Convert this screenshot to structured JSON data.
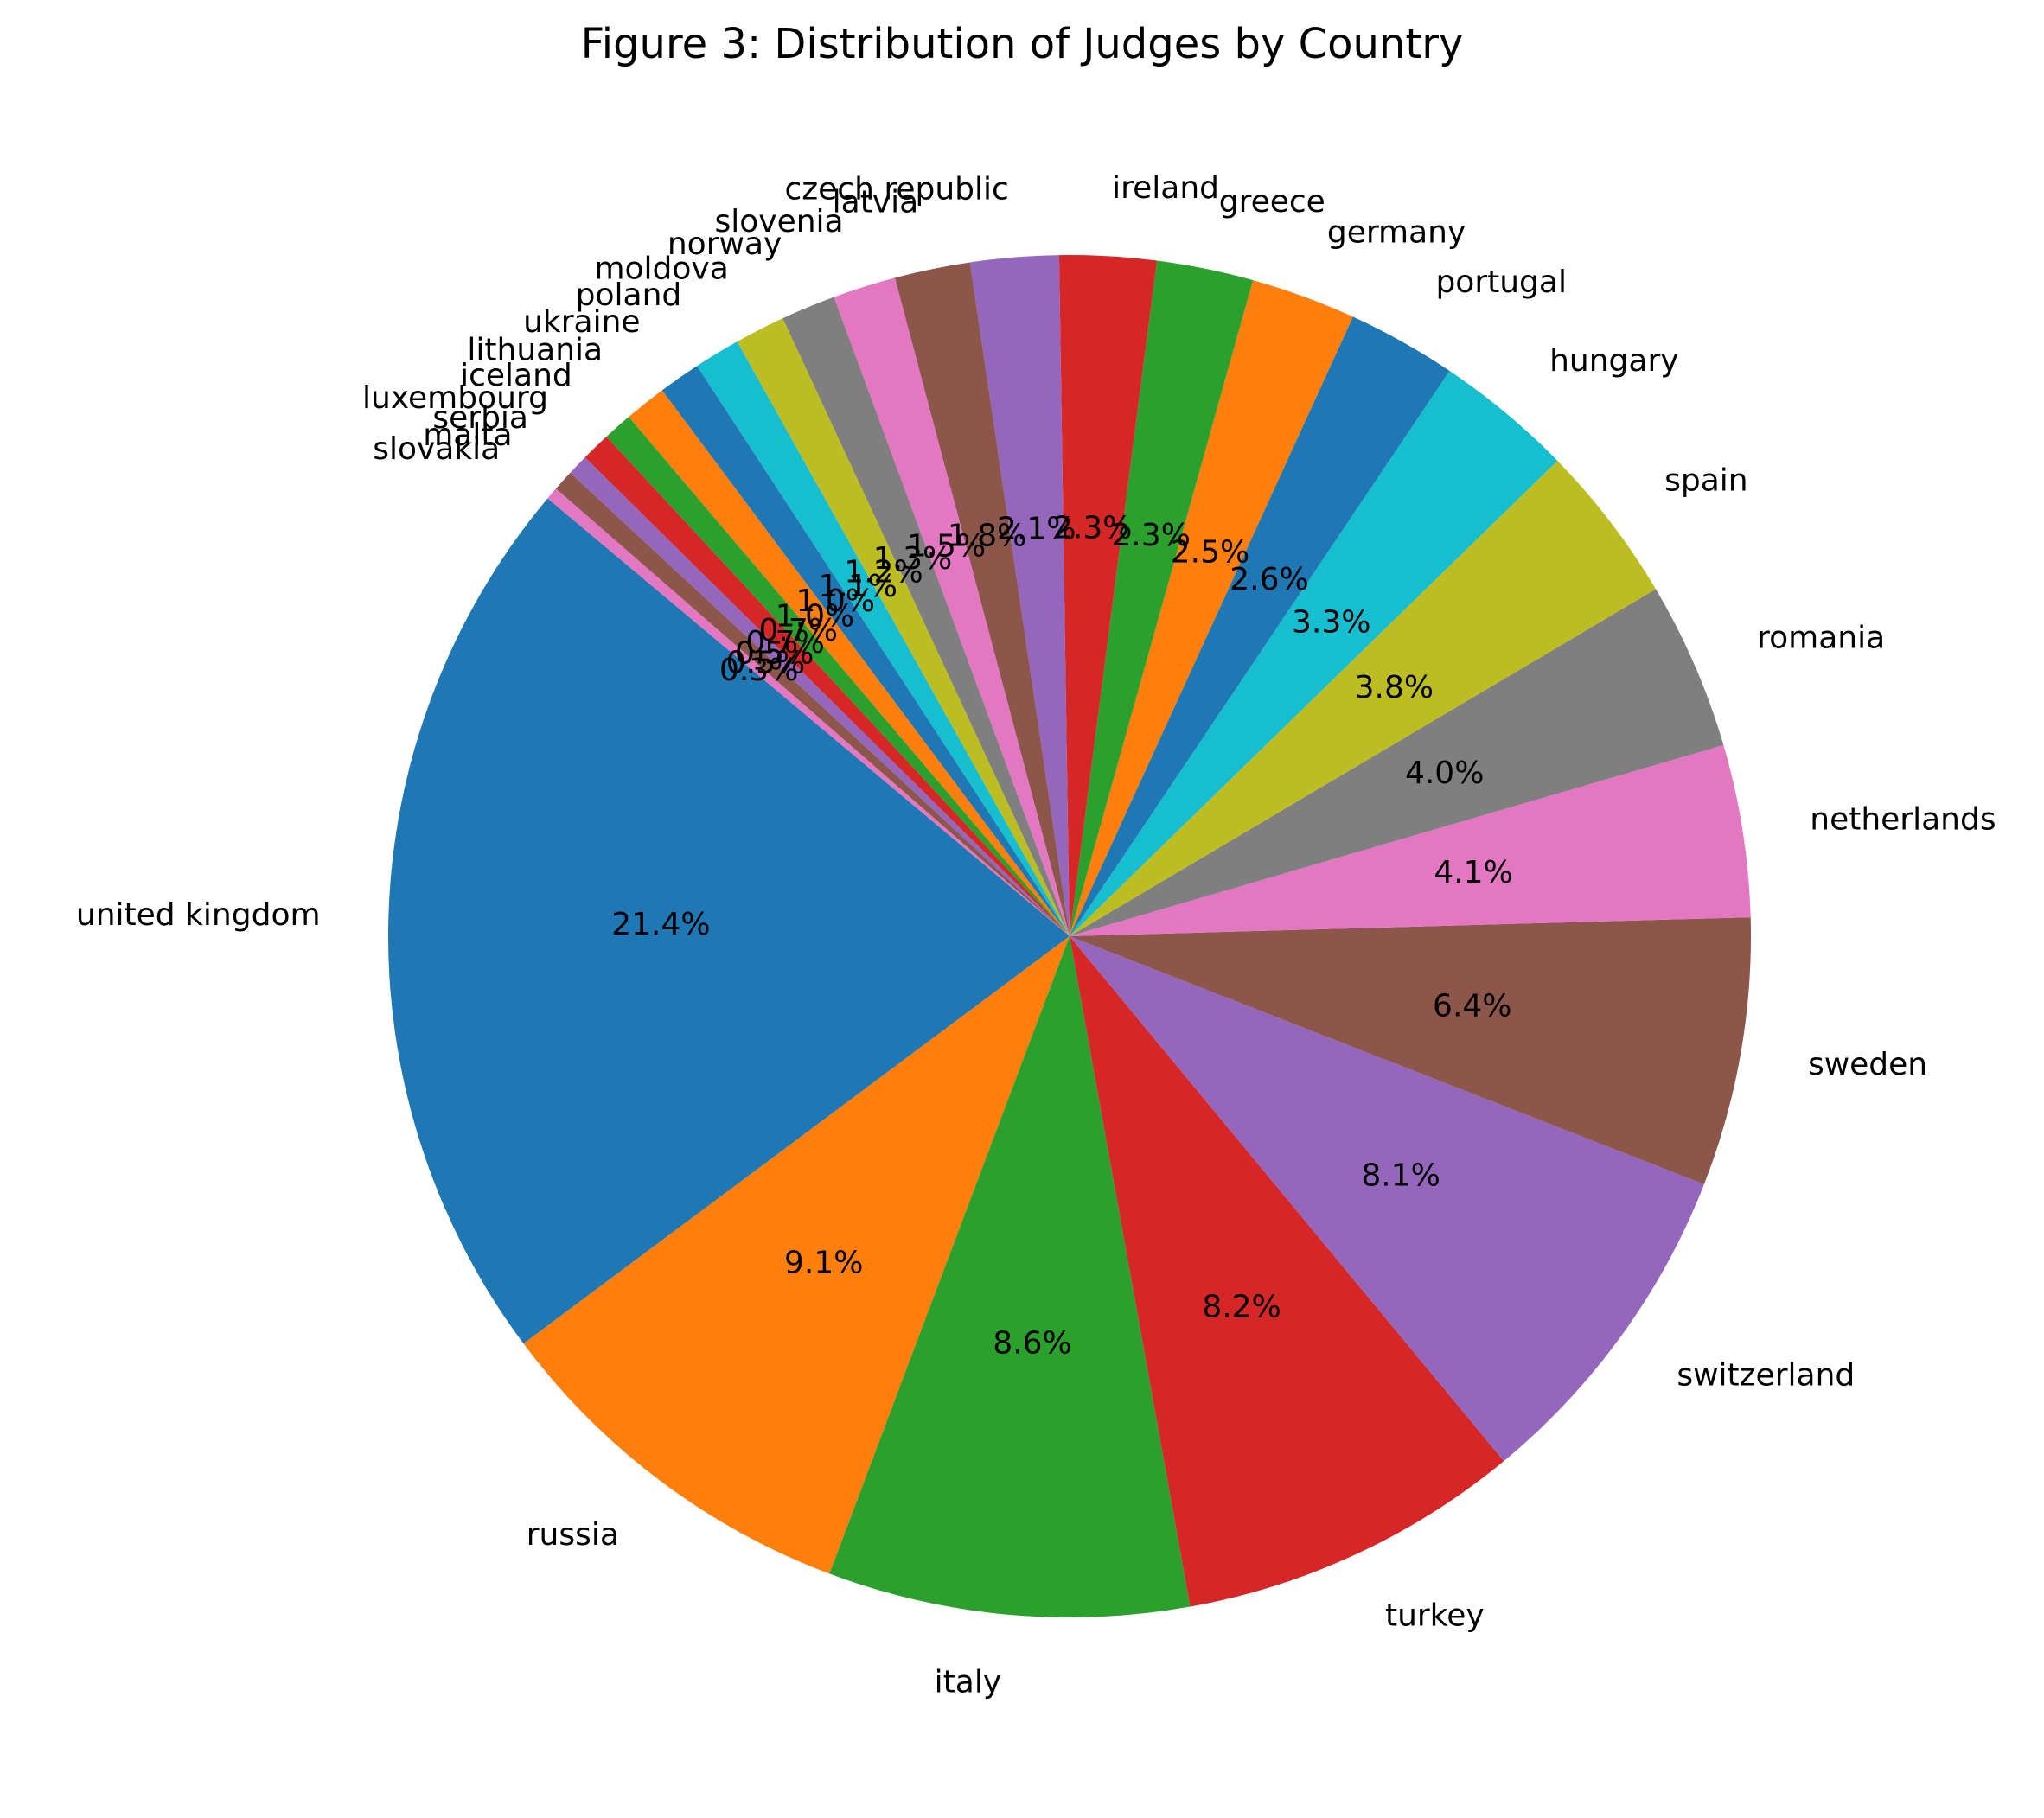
{
  "chart_data": {
    "type": "pie",
    "title": "Figure 3: Distribution of Judges by Country",
    "start_angle_deg": 140,
    "direction": "counterclockwise",
    "slices": [
      {
        "label": "united kingdom",
        "value": 21.4,
        "pct_label": "21.4%",
        "color": "#1f77b4"
      },
      {
        "label": "russia",
        "value": 9.1,
        "pct_label": "9.1%",
        "color": "#ff7f0e"
      },
      {
        "label": "italy",
        "value": 8.6,
        "pct_label": "8.6%",
        "color": "#2ca02c"
      },
      {
        "label": "turkey",
        "value": 8.2,
        "pct_label": "8.2%",
        "color": "#d62728"
      },
      {
        "label": "switzerland",
        "value": 8.1,
        "pct_label": "8.1%",
        "color": "#9467bd"
      },
      {
        "label": "sweden",
        "value": 6.4,
        "pct_label": "6.4%",
        "color": "#8c564b"
      },
      {
        "label": "netherlands",
        "value": 4.1,
        "pct_label": "4.1%",
        "color": "#e377c2"
      },
      {
        "label": "romania",
        "value": 4.0,
        "pct_label": "4.0%",
        "color": "#7f7f7f"
      },
      {
        "label": "spain",
        "value": 3.8,
        "pct_label": "3.8%",
        "color": "#bcbd22"
      },
      {
        "label": "hungary",
        "value": 3.3,
        "pct_label": "3.3%",
        "color": "#17becf"
      },
      {
        "label": "portugal",
        "value": 2.6,
        "pct_label": "2.6%",
        "color": "#1f77b4"
      },
      {
        "label": "germany",
        "value": 2.5,
        "pct_label": "2.5%",
        "color": "#ff7f0e"
      },
      {
        "label": "greece",
        "value": 2.3,
        "pct_label": "2.3%",
        "color": "#2ca02c"
      },
      {
        "label": "ireland",
        "value": 2.3,
        "pct_label": "2.3%",
        "color": "#d62728"
      },
      {
        "label": "czech republic",
        "value": 2.1,
        "pct_label": "2.1%",
        "color": "#9467bd"
      },
      {
        "label": "latvia",
        "value": 1.8,
        "pct_label": "1.8%",
        "color": "#8c564b"
      },
      {
        "label": "slovenia",
        "value": 1.5,
        "pct_label": "1.5%",
        "color": "#e377c2"
      },
      {
        "label": "norway",
        "value": 1.3,
        "pct_label": "1.3%",
        "color": "#7f7f7f"
      },
      {
        "label": "moldova",
        "value": 1.2,
        "pct_label": "1.2%",
        "color": "#bcbd22"
      },
      {
        "label": "poland",
        "value": 1.1,
        "pct_label": "1.1%",
        "color": "#17becf"
      },
      {
        "label": "ukraine",
        "value": 1.0,
        "pct_label": "1.0%",
        "color": "#1f77b4"
      },
      {
        "label": "lithuania",
        "value": 1.0,
        "pct_label": "1.0%",
        "color": "#ff7f0e"
      },
      {
        "label": "iceland",
        "value": 0.7,
        "pct_label": "0.7%",
        "color": "#2ca02c"
      },
      {
        "label": "luxembourg",
        "value": 0.7,
        "pct_label": "0.7%",
        "color": "#d62728"
      },
      {
        "label": "serbia",
        "value": 0.5,
        "pct_label": "0.5%",
        "color": "#9467bd"
      },
      {
        "label": "malta",
        "value": 0.5,
        "pct_label": "0.5%",
        "color": "#8c564b"
      },
      {
        "label": "slovakia",
        "value": 0.3,
        "pct_label": "0.3%",
        "color": "#e377c2"
      }
    ]
  }
}
